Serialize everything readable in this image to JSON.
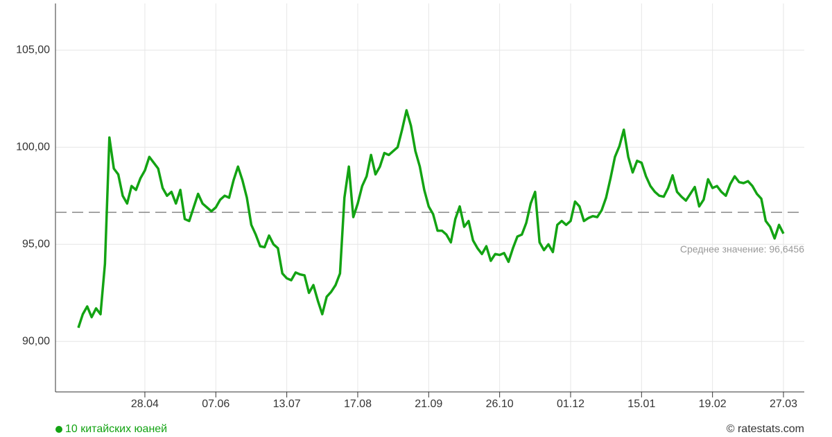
{
  "chart_data": {
    "type": "line",
    "categories": [
      null,
      null,
      null,
      null,
      null,
      null,
      null,
      null,
      null,
      null,
      null,
      null,
      null,
      null,
      null,
      "28.04",
      null,
      null,
      null,
      null,
      null,
      null,
      null,
      null,
      null,
      null,
      null,
      null,
      null,
      null,
      null,
      "07.06",
      null,
      null,
      null,
      null,
      null,
      null,
      null,
      null,
      null,
      null,
      null,
      null,
      null,
      null,
      null,
      "13.07",
      null,
      null,
      null,
      null,
      null,
      null,
      null,
      null,
      null,
      null,
      null,
      null,
      null,
      null,
      null,
      "17.08",
      null,
      null,
      null,
      null,
      null,
      null,
      null,
      null,
      null,
      null,
      null,
      null,
      null,
      null,
      null,
      "21.09",
      null,
      null,
      null,
      null,
      null,
      null,
      null,
      null,
      null,
      null,
      null,
      null,
      null,
      null,
      null,
      "26.10",
      null,
      null,
      null,
      null,
      null,
      null,
      null,
      null,
      null,
      null,
      null,
      null,
      null,
      null,
      null,
      "01.12",
      null,
      null,
      null,
      null,
      null,
      null,
      null,
      null,
      null,
      null,
      null,
      null,
      null,
      null,
      null,
      "15.01",
      null,
      null,
      null,
      null,
      null,
      null,
      null,
      null,
      null,
      null,
      null,
      null,
      null,
      null,
      null,
      "19.02",
      null,
      null,
      null,
      null,
      null,
      null,
      null,
      null,
      null,
      null,
      null,
      null,
      null,
      null,
      null,
      "27.03"
    ],
    "series": [
      {
        "name": "10 китайских юаней",
        "color": "#13a313",
        "values": [
          90.7,
          91.4,
          91.8,
          91.25,
          91.7,
          91.4,
          94,
          100.5,
          98.9,
          98.6,
          97.5,
          97.1,
          98.0,
          97.8,
          98.4,
          98.8,
          99.5,
          99.2,
          98.9,
          97.9,
          97.5,
          97.7,
          97.1,
          97.8,
          96.3,
          96.2,
          96.9,
          97.6,
          97.1,
          96.9,
          96.7,
          96.9,
          97.3,
          97.5,
          97.4,
          98.3,
          99.0,
          98.3,
          97.4,
          96.0,
          95.5,
          94.9,
          94.85,
          95.45,
          95.0,
          94.8,
          93.5,
          93.25,
          93.15,
          93.55,
          93.45,
          93.4,
          92.5,
          92.9,
          92.1,
          91.4,
          92.3,
          92.55,
          92.9,
          93.5,
          97.4,
          99.0,
          96.4,
          97.1,
          98.0,
          98.5,
          99.6,
          98.6,
          99.0,
          99.7,
          99.6,
          99.8,
          100.0,
          100.9,
          101.9,
          101.1,
          99.8,
          99.0,
          97.8,
          96.95,
          96.55,
          95.7,
          95.7,
          95.5,
          95.1,
          96.3,
          96.95,
          95.9,
          96.2,
          95.2,
          94.8,
          94.5,
          94.9,
          94.15,
          94.5,
          94.45,
          94.55,
          94.1,
          94.8,
          95.4,
          95.5,
          96.1,
          97.1,
          97.7,
          95.1,
          94.7,
          95.0,
          94.6,
          96.0,
          96.2,
          96.0,
          96.2,
          97.2,
          96.95,
          96.2,
          96.35,
          96.45,
          96.4,
          96.75,
          97.4,
          98.4,
          99.5,
          100.05,
          100.9,
          99.5,
          98.7,
          99.3,
          99.2,
          98.5,
          98.0,
          97.7,
          97.5,
          97.45,
          97.9,
          98.55,
          97.7,
          97.45,
          97.25,
          97.6,
          97.95,
          96.95,
          97.3,
          98.35,
          97.9,
          98.0,
          97.7,
          97.5,
          98.1,
          98.5,
          98.2,
          98.15,
          98.25,
          98.0,
          97.6,
          97.35,
          96.2,
          95.9,
          95.3,
          96.0,
          95.55
        ]
      }
    ],
    "ylim": [
      87.4,
      107.4
    ],
    "yticks": [
      {
        "value": 90,
        "label": "90,00"
      },
      {
        "value": 95,
        "label": "95,00"
      },
      {
        "value": 100,
        "label": "100,00"
      },
      {
        "value": 105,
        "label": "105,00"
      }
    ],
    "grid": true,
    "mean": {
      "value": 96.6456,
      "label": "Среднее значение: 96,6456"
    },
    "credit": "© ratestats.com",
    "legend": "bottom-left"
  }
}
